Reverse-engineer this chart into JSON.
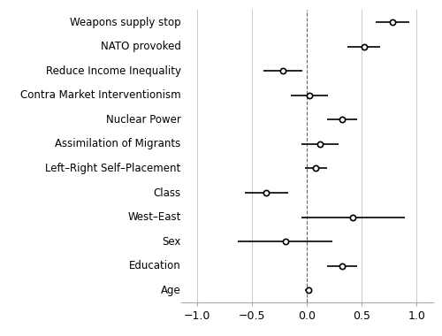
{
  "variables": [
    "Weapons supply stop",
    "NATO provoked",
    "Reduce Income Inequality",
    "Contra Market Interventionism",
    "Nuclear Power",
    "Assimilation of Migrants",
    "Left–Right Self–Placement",
    "Class",
    "West–East",
    "Sex",
    "Education",
    "Age"
  ],
  "coefs": [
    0.78,
    0.52,
    -0.22,
    0.02,
    0.32,
    0.12,
    0.08,
    -0.37,
    0.42,
    -0.2,
    0.32,
    0.01
  ],
  "ci_low": [
    0.63,
    0.37,
    -0.4,
    -0.15,
    0.18,
    -0.05,
    -0.02,
    -0.57,
    -0.05,
    -0.63,
    0.18,
    -0.02
  ],
  "ci_high": [
    0.93,
    0.67,
    -0.04,
    0.19,
    0.46,
    0.29,
    0.18,
    -0.17,
    0.89,
    0.23,
    0.46,
    0.04
  ],
  "xlim": [
    -1.15,
    1.15
  ],
  "xticks": [
    -1.0,
    -0.5,
    0.0,
    0.5,
    1.0
  ],
  "xticklabels": [
    "−1.0",
    "−0.5",
    "0.0",
    "0.5",
    "1.0"
  ],
  "grid_color": "#cccccc",
  "line_color": "#000000",
  "dot_color": "#ffffff",
  "dot_edge_color": "#000000",
  "background_color": "#ffffff",
  "fontsize_labels": 8.5,
  "fontsize_ticks": 9
}
